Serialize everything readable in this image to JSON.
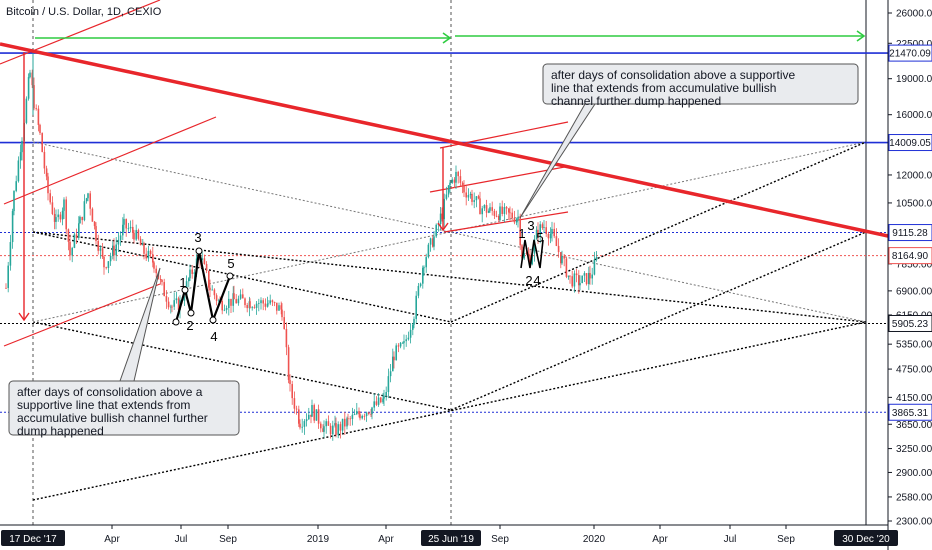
{
  "header": {
    "title": "Bitcoin / U.S. Dollar, 1D, CEXIO"
  },
  "chart_data": {
    "type": "candlestick",
    "title": "Bitcoin / U.S. Dollar, 1D, CEXIO",
    "y_scale": "log",
    "ylim": [
      2250,
      28500
    ],
    "y_ticks": [
      26000,
      22500,
      19000,
      16000,
      14000,
      12000,
      10500,
      9000,
      7850,
      6900,
      6150,
      5350,
      4750,
      4150,
      3650,
      3250,
      2900,
      2580,
      2300
    ],
    "x_ticks": [
      "Apr",
      "Jul",
      "Sep",
      "2019",
      "Apr",
      "Sep",
      "2020",
      "Apr",
      "Jul",
      "Sep"
    ],
    "x_badges": [
      "17 Dec '17",
      "25 Jun '19",
      "30 Dec '20"
    ],
    "price_levels": [
      {
        "label": "21470.09",
        "value": 21470.09,
        "color": "#1f2fd6",
        "style": "solid"
      },
      {
        "label": "14009.05",
        "value": 14009.05,
        "color": "#1f2fd6",
        "style": "solid"
      },
      {
        "label": "9115.28",
        "value": 9115.28,
        "color": "#1f2fd6",
        "style": "dotted"
      },
      {
        "label": "8164.90",
        "value": 8164.9,
        "color": "#ef5350",
        "style": "dotted"
      },
      {
        "label": "5905.23",
        "value": 5905.23,
        "color": "#000000",
        "style": "dashed"
      },
      {
        "label": "3865.31",
        "value": 3865.31,
        "color": "#1f2fd6",
        "style": "dotted"
      }
    ],
    "wave_labels_1": [
      "1",
      "2",
      "3",
      "4",
      "5"
    ],
    "wave_labels_2": [
      "1",
      "2",
      "3",
      "4",
      "5"
    ],
    "annotations": [
      "after days of consolidation above a supportive line that extends from accumulative bullish channel further dump happened",
      "after days of consolidation above a supportive line that extends from accumulative bullish channel further dump happened"
    ],
    "colors": {
      "up": "#26a69a",
      "down": "#ef5350",
      "trend": "#e8262b",
      "level": "#1f2fd6",
      "arrow": "#2ecc40"
    }
  }
}
